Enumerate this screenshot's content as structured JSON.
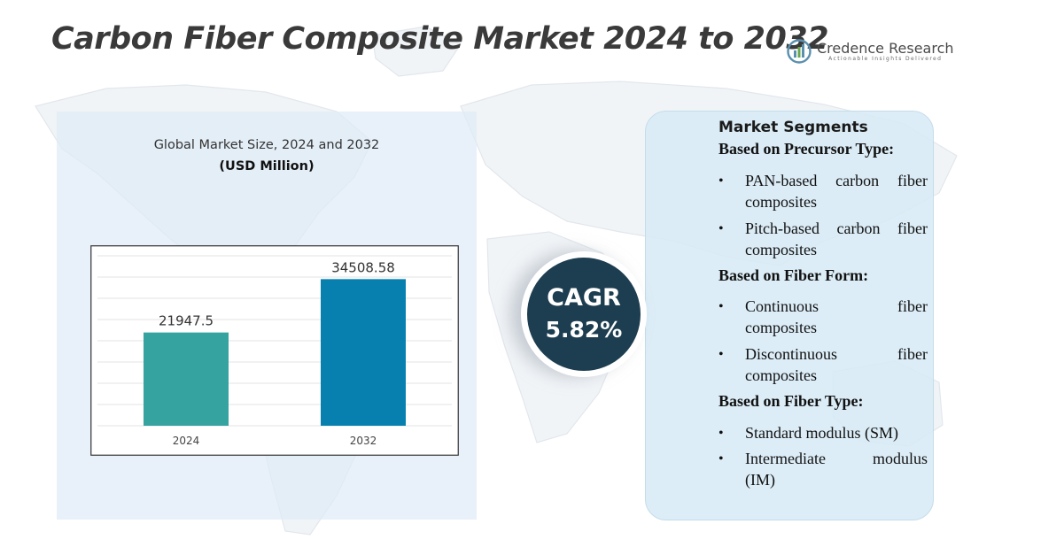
{
  "header": {
    "title": "Carbon Fiber Composite Market 2024 to 2032",
    "brand_name": "Credence Research",
    "brand_tagline": "Actionable Insights Delivered"
  },
  "chart_panel": {
    "heading": "Global Market Size, 2024 and 2032",
    "subheading": "(USD Million)"
  },
  "chart_data": {
    "type": "bar",
    "title": "Global Market Size, 2024 and 2032",
    "ylabel": "(USD Million)",
    "xlabel": "",
    "categories": [
      "2024",
      "2032"
    ],
    "values": [
      21947.5,
      34508.58
    ],
    "value_labels": [
      "21947.5",
      "34508.58"
    ],
    "colors": [
      "#35a39f",
      "#0780b0"
    ],
    "ylim": [
      0,
      40000
    ],
    "grid": true
  },
  "cagr": {
    "label": "CAGR",
    "value": "5.82%"
  },
  "segments": {
    "title": "Market Segments",
    "groups": [
      {
        "heading": "Based on Precursor Type:",
        "items": [
          [
            "PAN-based carbon fiber",
            "composites"
          ],
          [
            "Pitch-based carbon fiber",
            "composites"
          ]
        ]
      },
      {
        "heading": "Based on Fiber Form:",
        "items": [
          [
            "Continuous fiber",
            "composites"
          ],
          [
            "Discontinuous fiber",
            "composites"
          ]
        ]
      },
      {
        "heading": "Based on Fiber Type:",
        "items": [
          [
            "Standard modulus (SM)"
          ],
          [
            "Intermediate modulus",
            "(IM)"
          ]
        ]
      }
    ]
  },
  "colors": {
    "title": "#3a3a3a",
    "cagr_bg": "#1d3e50",
    "panel_bg": "#dfecf7",
    "segments_bg": "#d7eaf6"
  }
}
